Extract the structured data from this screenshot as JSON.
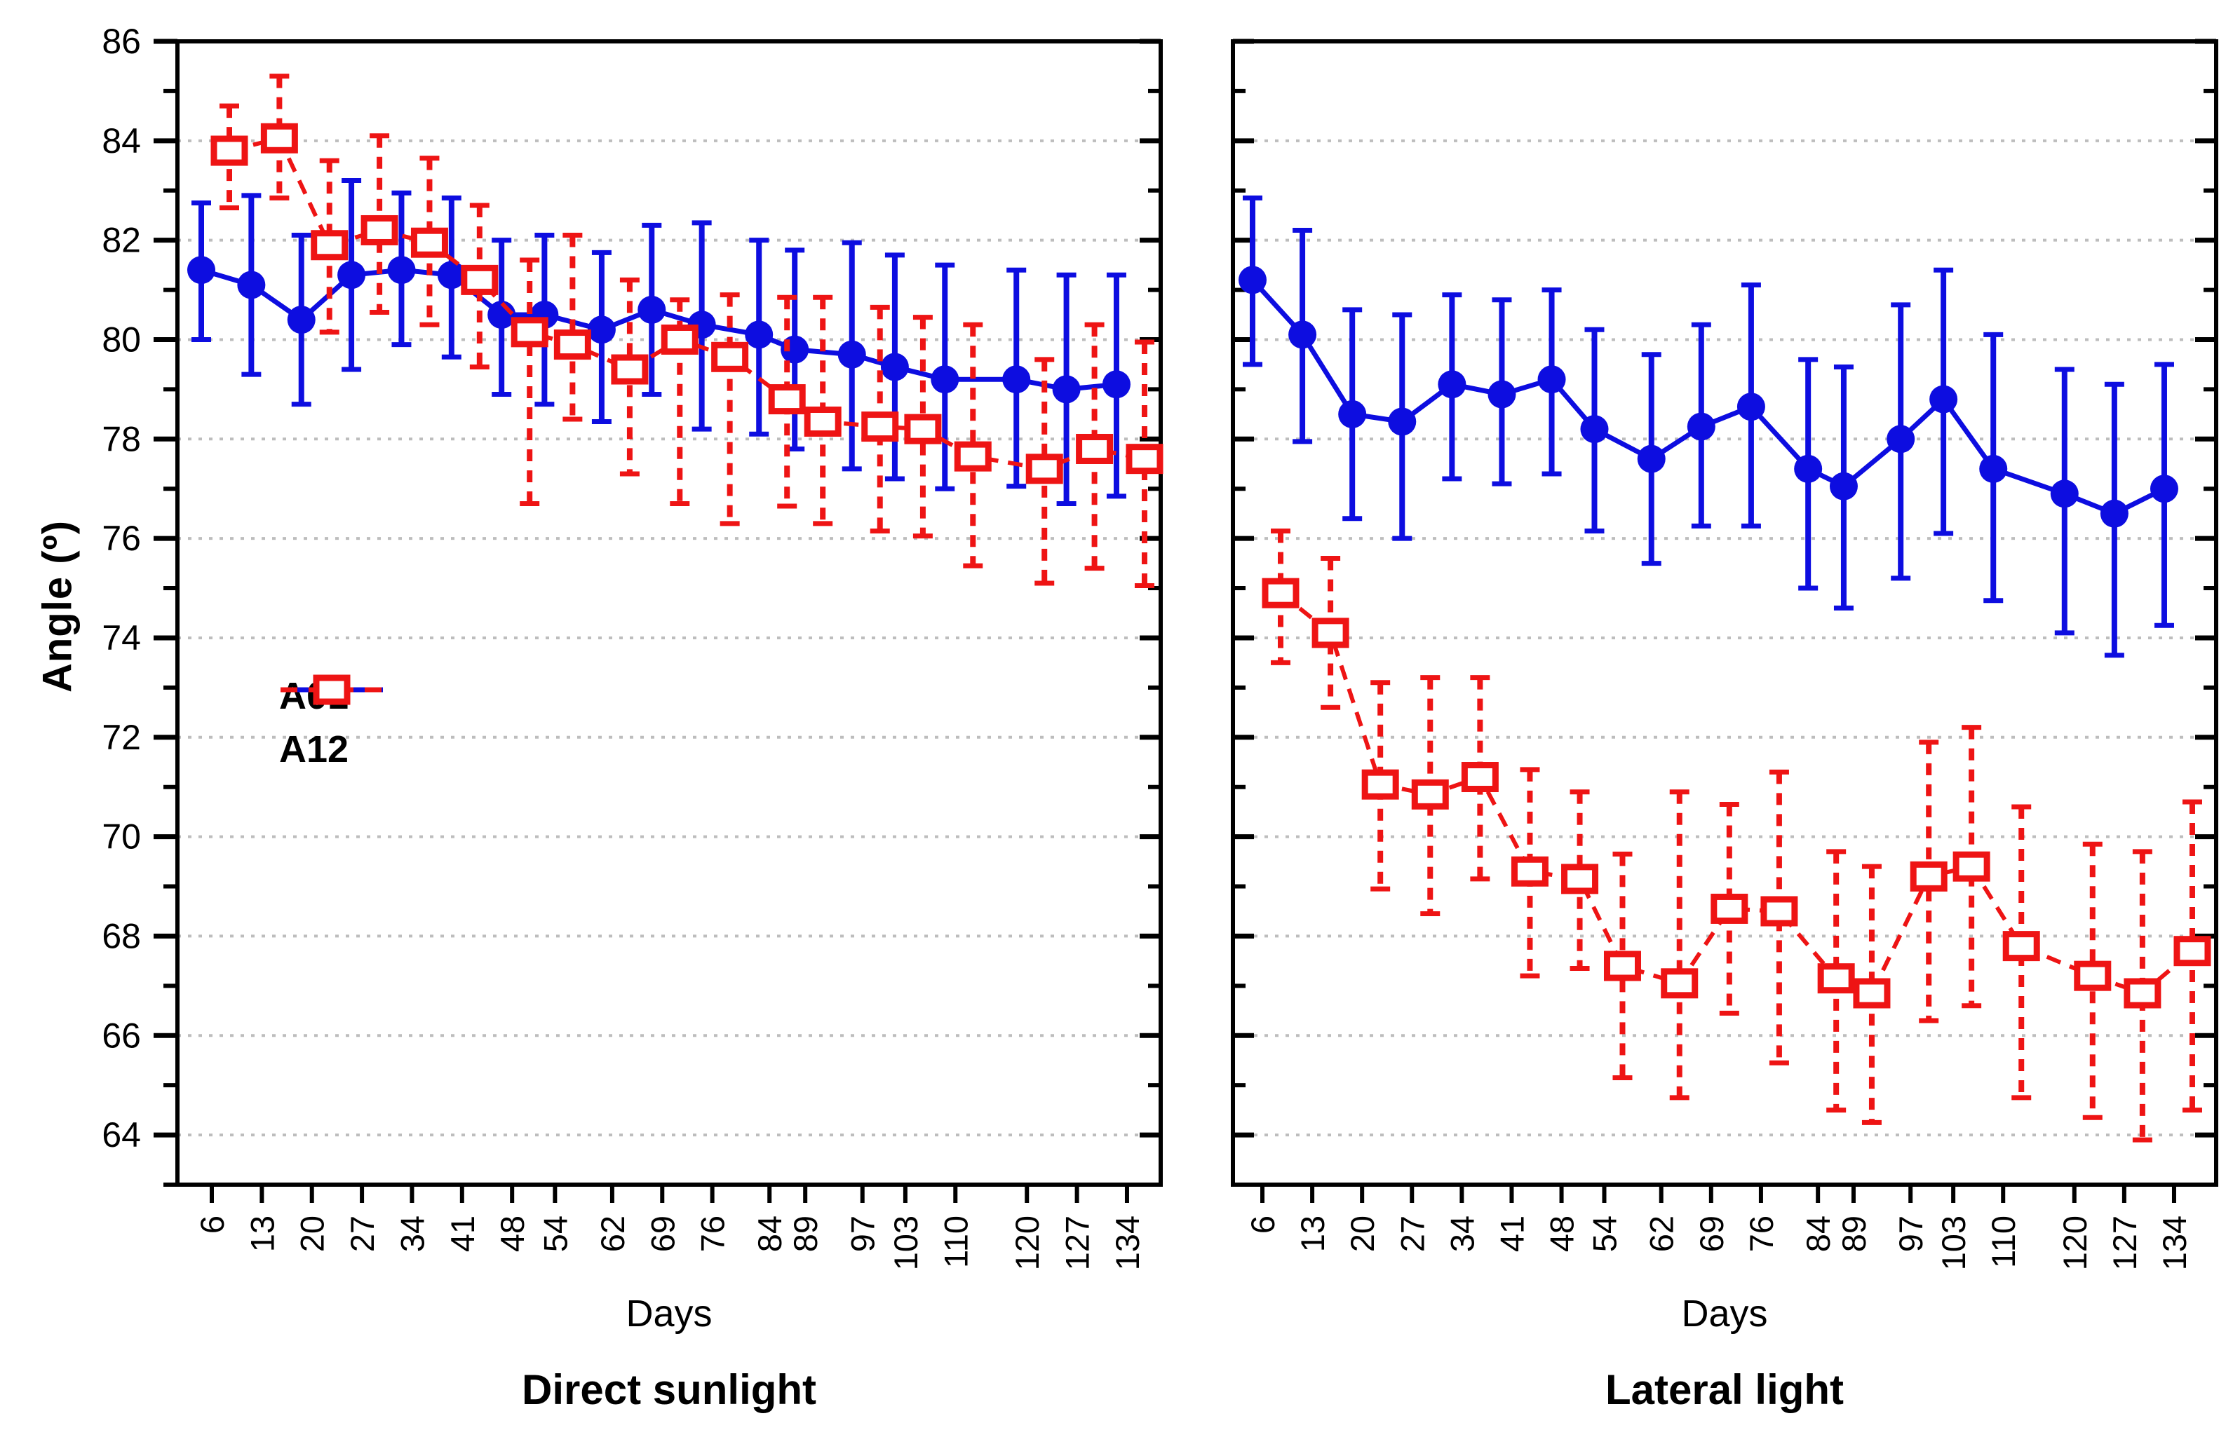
{
  "figure": {
    "ylabel": "Angle (º)",
    "y_ticks": [
      64,
      66,
      68,
      70,
      72,
      74,
      76,
      78,
      80,
      82,
      84,
      86
    ],
    "colors": {
      "a01_blue": "#0d0de0",
      "a12_red": "#ee1414",
      "gridline": "#bdbdbd",
      "frame": "#000000",
      "text": "#000000"
    }
  },
  "chart_data": [
    {
      "type": "line",
      "caption": "Direct sunlight",
      "xlabel": "Days",
      "ylabel": "Angle (º)",
      "ylim": [
        63,
        86
      ],
      "grid": "horizontal-dotted",
      "legend_position": "inside-left-middle",
      "x": [
        6,
        13,
        20,
        27,
        34,
        41,
        48,
        54,
        62,
        69,
        76,
        84,
        89,
        97,
        103,
        110,
        120,
        127,
        134
      ],
      "series": [
        {
          "name": "A01",
          "marker": "filled-circle",
          "line": "solid",
          "color": "#0d0de0",
          "values": [
            81.4,
            81.1,
            80.4,
            81.3,
            81.4,
            81.3,
            80.5,
            80.5,
            80.2,
            80.6,
            80.3,
            80.1,
            79.8,
            79.7,
            79.45,
            79.2,
            79.2,
            79.0,
            79.1
          ],
          "err_low": [
            80.0,
            79.3,
            78.7,
            79.4,
            79.9,
            79.65,
            78.9,
            78.7,
            78.35,
            78.9,
            78.2,
            78.1,
            77.8,
            77.4,
            77.2,
            77.0,
            77.05,
            76.7,
            76.85
          ],
          "err_high": [
            82.75,
            82.9,
            82.1,
            83.2,
            82.95,
            82.85,
            82.0,
            82.1,
            81.75,
            82.3,
            82.35,
            82.0,
            81.8,
            81.95,
            81.7,
            81.5,
            81.4,
            81.3,
            81.3
          ]
        },
        {
          "name": "A12",
          "marker": "open-square",
          "line": "dashed",
          "color": "#ee1414",
          "values": [
            83.8,
            84.05,
            81.9,
            82.2,
            81.95,
            81.2,
            80.15,
            79.9,
            79.4,
            80.0,
            79.65,
            78.8,
            78.35,
            78.25,
            78.2,
            77.65,
            77.4,
            77.8,
            77.6
          ],
          "err_low": [
            82.65,
            82.85,
            80.15,
            80.55,
            80.3,
            79.45,
            76.7,
            78.4,
            77.3,
            76.7,
            76.3,
            76.65,
            76.3,
            76.15,
            76.05,
            75.45,
            75.1,
            75.4,
            75.05
          ],
          "err_high": [
            84.7,
            85.3,
            83.6,
            84.1,
            83.65,
            82.7,
            81.6,
            82.1,
            81.2,
            80.8,
            80.9,
            80.85,
            80.85,
            80.65,
            80.45,
            80.3,
            79.6,
            80.3,
            79.95
          ]
        }
      ]
    },
    {
      "type": "line",
      "caption": "Lateral light",
      "xlabel": "Days",
      "ylabel": "Angle (º)",
      "ylim": [
        63,
        86
      ],
      "grid": "horizontal-dotted",
      "legend_position": "none",
      "x": [
        6,
        13,
        20,
        27,
        34,
        41,
        48,
        54,
        62,
        69,
        76,
        84,
        89,
        97,
        103,
        110,
        120,
        127,
        134
      ],
      "series": [
        {
          "name": "A01",
          "marker": "filled-circle",
          "line": "solid",
          "color": "#0d0de0",
          "values": [
            81.2,
            80.1,
            78.5,
            78.35,
            79.1,
            78.9,
            79.2,
            78.2,
            77.6,
            78.25,
            78.65,
            77.4,
            77.05,
            78.0,
            78.8,
            77.4,
            76.9,
            76.5,
            77.0
          ],
          "err_low": [
            79.5,
            77.95,
            76.4,
            76.0,
            77.2,
            77.1,
            77.3,
            76.15,
            75.5,
            76.25,
            76.25,
            75.0,
            74.6,
            75.2,
            76.1,
            74.75,
            74.1,
            73.65,
            74.25
          ],
          "err_high": [
            82.85,
            82.2,
            80.6,
            80.5,
            80.9,
            80.8,
            81.0,
            80.2,
            79.7,
            80.3,
            81.1,
            79.6,
            79.45,
            80.7,
            81.4,
            80.1,
            79.4,
            79.1,
            79.5
          ]
        },
        {
          "name": "A12",
          "marker": "open-square",
          "line": "dashed",
          "color": "#ee1414",
          "values": [
            74.9,
            74.1,
            71.05,
            70.85,
            71.2,
            69.3,
            69.15,
            67.4,
            67.05,
            68.55,
            68.5,
            67.15,
            66.85,
            69.2,
            69.4,
            67.8,
            67.2,
            66.85,
            67.7
          ],
          "err_low": [
            73.5,
            72.6,
            68.95,
            68.45,
            69.15,
            67.2,
            67.35,
            65.15,
            64.75,
            66.45,
            65.45,
            64.5,
            64.25,
            66.3,
            66.6,
            64.75,
            64.35,
            63.9,
            64.5
          ],
          "err_high": [
            76.15,
            75.6,
            73.1,
            73.2,
            73.2,
            71.35,
            70.9,
            69.65,
            70.9,
            70.65,
            71.3,
            69.7,
            69.4,
            71.9,
            72.2,
            70.6,
            69.85,
            69.7,
            70.7
          ]
        }
      ]
    }
  ]
}
